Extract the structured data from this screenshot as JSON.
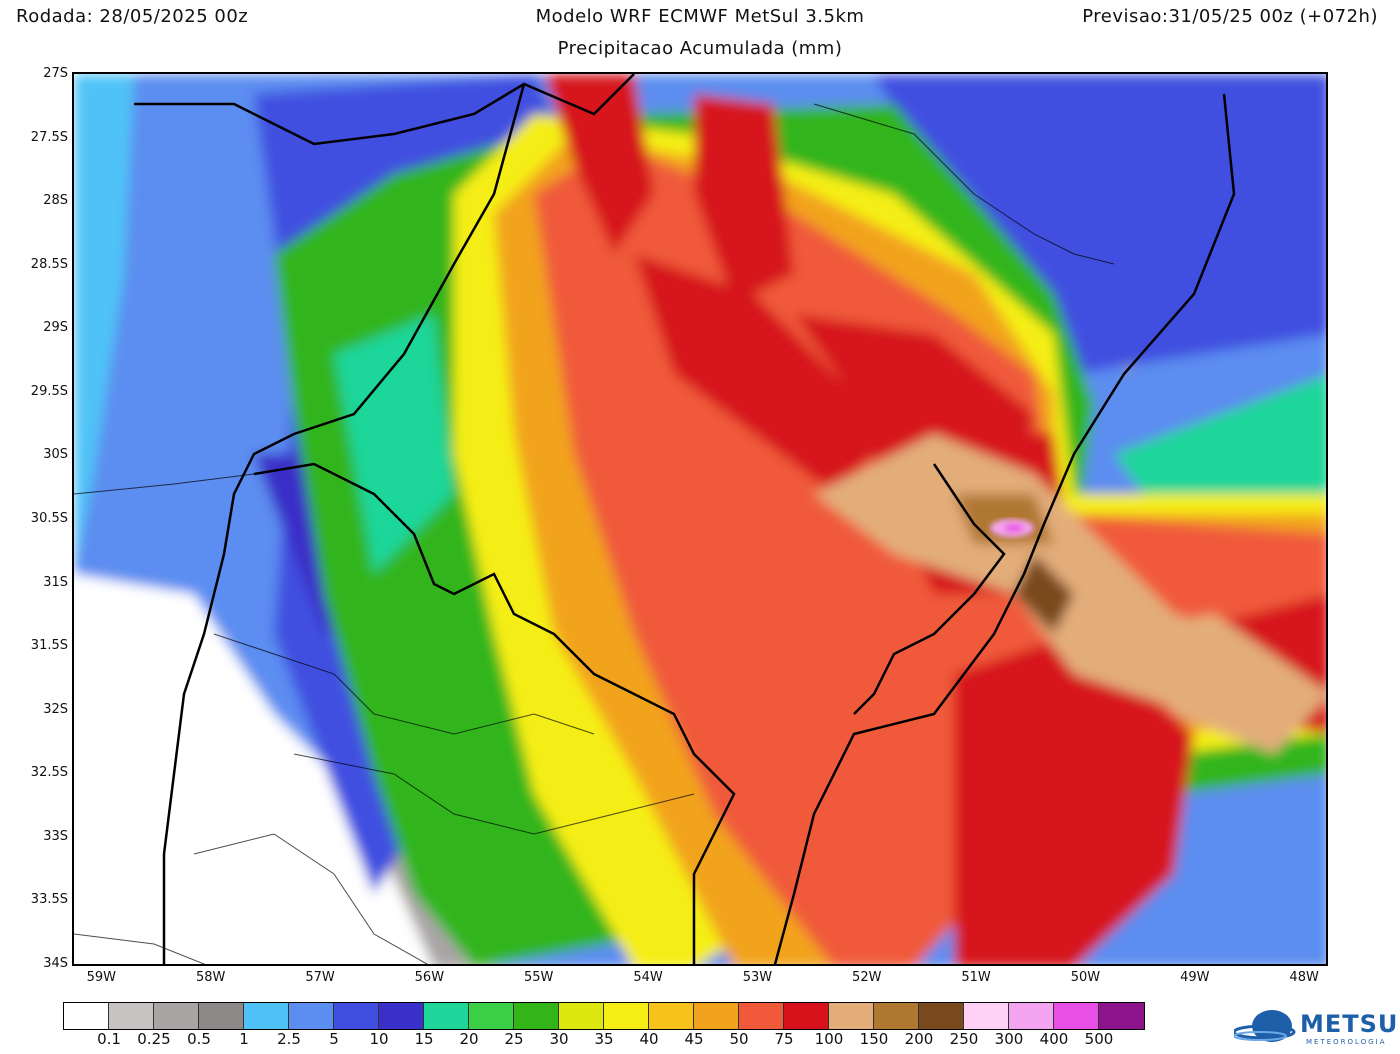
{
  "header": {
    "run": "Rodada: 28/05/2025 00z",
    "model": "Modelo WRF ECMWF MetSul 3.5km",
    "subtitle": "Precipitacao Acumulada (mm)",
    "valid": "Previsao:31/05/25 00z (+072h)"
  },
  "map": {
    "lat_ticks": [
      "27S",
      "27.5S",
      "28S",
      "28.5S",
      "29S",
      "29.5S",
      "30S",
      "30.5S",
      "31S",
      "31.5S",
      "32S",
      "32.5S",
      "33S",
      "33.5S",
      "34S"
    ],
    "lon_ticks": [
      "59W",
      "58W",
      "57W",
      "56W",
      "55W",
      "54W",
      "53W",
      "52W",
      "51W",
      "50W",
      "49W",
      "48W"
    ],
    "lat_range": [
      -34,
      -27
    ],
    "lon_range": [
      -59.25,
      -47.8
    ]
  },
  "colorbar": {
    "colors": [
      "#ffffff",
      "#c8c3c3",
      "#a9a5a5",
      "#8c8888",
      "#4fc3f7",
      "#5c8df0",
      "#3f4fe0",
      "#3a2fc8",
      "#1fd69a",
      "#3cd048",
      "#33b51a",
      "#dce60f",
      "#f5ee14",
      "#f7c21a",
      "#f2a31e",
      "#f05a3a",
      "#d6121a",
      "#e3ad7a",
      "#b07730",
      "#7a4a1e",
      "#ffd1f5",
      "#f4a4f0",
      "#e84fe4",
      "#8e148e"
    ],
    "labels": [
      "0.1",
      "0.25",
      "0.5",
      "1",
      "2.5",
      "5",
      "10",
      "15",
      "20",
      "25",
      "30",
      "35",
      "40",
      "45",
      "50",
      "75",
      "100",
      "150",
      "200",
      "250",
      "300",
      "400",
      "500"
    ]
  },
  "logo": {
    "name": "METSUL",
    "sub": "METEOROLOGIA"
  }
}
